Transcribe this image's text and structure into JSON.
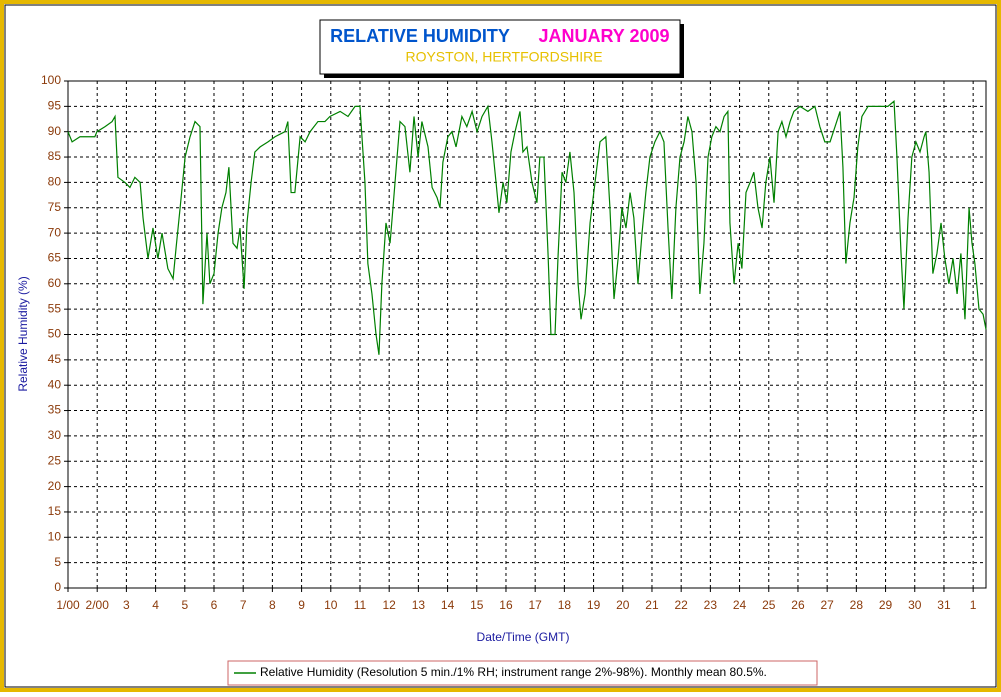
{
  "chart_data": {
    "type": "line",
    "title": "RELATIVE HUMIDITY",
    "title_date": "JANUARY 2009",
    "subtitle": "ROYSTON, HERTFORDSHIRE",
    "ylabel": "Relative Humidity (%)",
    "xlabel": "Date/Time (GMT)",
    "xlim": [
      1,
      32.44
    ],
    "ylim": [
      0,
      100
    ],
    "xticks": [
      {
        "value": 1,
        "label": "1/00"
      },
      {
        "value": 2,
        "label": "2/00"
      },
      3,
      4,
      5,
      6,
      7,
      8,
      9,
      10,
      11,
      12,
      13,
      14,
      15,
      16,
      17,
      18,
      19,
      20,
      21,
      22,
      23,
      24,
      25,
      26,
      27,
      28,
      29,
      30,
      31,
      {
        "value": 32,
        "label": "1"
      }
    ],
    "yticks": [
      0,
      5,
      10,
      15,
      20,
      25,
      30,
      35,
      40,
      45,
      50,
      55,
      60,
      65,
      70,
      75,
      80,
      85,
      90,
      95,
      100
    ],
    "grid": true,
    "x": [
      1.0,
      1.14,
      1.41,
      1.92,
      1.99,
      2.27,
      2.51,
      2.61,
      2.71,
      2.95,
      3.12,
      3.29,
      3.47,
      3.57,
      3.74,
      3.91,
      4.08,
      4.22,
      4.42,
      4.6,
      4.7,
      4.84,
      5.01,
      5.18,
      5.35,
      5.52,
      5.62,
      5.76,
      5.86,
      6.0,
      6.14,
      6.27,
      6.41,
      6.51,
      6.65,
      6.79,
      6.89,
      7.03,
      7.13,
      7.27,
      7.4,
      7.58,
      7.85,
      8.09,
      8.43,
      8.53,
      8.64,
      8.77,
      8.95,
      9.12,
      9.29,
      9.56,
      9.8,
      9.97,
      10.32,
      10.59,
      10.83,
      11.0,
      11.17,
      11.27,
      11.41,
      11.55,
      11.65,
      11.75,
      11.89,
      12.03,
      12.13,
      12.27,
      12.37,
      12.54,
      12.71,
      12.85,
      12.99,
      13.12,
      13.33,
      13.47,
      13.64,
      13.74,
      13.84,
      14.01,
      14.15,
      14.29,
      14.49,
      14.66,
      14.84,
      15.01,
      15.18,
      15.38,
      15.52,
      15.66,
      15.76,
      15.9,
      16.03,
      16.17,
      16.31,
      16.48,
      16.58,
      16.72,
      16.89,
      17.06,
      17.16,
      17.3,
      17.44,
      17.54,
      17.68,
      17.78,
      17.92,
      18.05,
      18.19,
      18.33,
      18.47,
      18.57,
      18.71,
      18.88,
      19.05,
      19.22,
      19.42,
      19.56,
      19.7,
      19.84,
      19.97,
      20.11,
      20.25,
      20.38,
      20.52,
      20.66,
      20.79,
      20.93,
      21.1,
      21.27,
      21.41,
      21.55,
      21.68,
      21.82,
      21.96,
      22.1,
      22.23,
      22.37,
      22.51,
      22.64,
      22.78,
      22.92,
      23.05,
      23.19,
      23.33,
      23.47,
      23.6,
      23.67,
      23.81,
      23.95,
      24.08,
      24.22,
      24.36,
      24.49,
      24.63,
      24.77,
      24.9,
      25.04,
      25.18,
      25.32,
      25.45,
      25.59,
      25.73,
      25.86,
      26.07,
      26.34,
      26.58,
      26.75,
      26.92,
      27.1,
      27.27,
      27.44,
      27.54,
      27.64,
      27.78,
      27.92,
      28.05,
      28.19,
      28.4,
      28.81,
      29.08,
      29.29,
      29.39,
      29.53,
      29.63,
      29.77,
      29.9,
      30.04,
      30.18,
      30.32,
      30.38,
      30.49,
      30.62,
      30.76,
      30.9,
      31.03,
      31.17,
      31.31,
      31.45,
      31.58,
      31.72,
      31.86,
      31.96,
      32.06,
      32.2,
      32.34,
      32.44
    ],
    "series": [
      {
        "name": "Relative Humidity (Resolution 5 min./1% RH; instrument range 2%-98%). Monthly mean 80.5%.",
        "color": "#008000",
        "values": [
          90,
          88,
          89,
          89,
          90,
          91,
          92,
          93,
          81,
          80,
          79,
          81,
          80,
          73,
          65,
          71,
          65,
          70,
          63,
          61,
          67,
          75,
          85,
          89,
          92,
          91,
          56,
          70,
          60,
          62,
          70,
          75,
          78,
          83,
          68,
          67,
          71,
          59,
          72,
          80,
          86,
          87,
          88,
          89,
          90,
          92,
          78,
          78,
          89,
          88,
          90,
          92,
          92,
          93,
          94,
          93,
          95,
          95,
          80,
          64,
          58,
          50,
          46,
          60,
          72,
          68,
          75,
          85,
          92,
          91,
          82,
          93,
          85,
          92,
          87,
          79,
          77,
          75,
          84,
          89,
          90,
          87,
          93,
          91,
          94,
          90,
          93,
          95,
          88,
          80,
          74,
          80,
          76,
          86,
          90,
          94,
          86,
          87,
          80,
          76,
          85,
          85,
          66,
          50,
          50,
          65,
          82,
          80,
          86,
          78,
          60,
          53,
          58,
          72,
          80,
          88,
          89,
          75,
          57,
          65,
          75,
          71,
          78,
          73,
          60,
          70,
          78,
          85,
          88,
          90,
          88,
          71,
          57,
          75,
          85,
          88,
          93,
          90,
          80,
          58,
          68,
          85,
          89,
          91,
          90,
          93,
          94,
          72,
          60,
          68,
          63,
          78,
          80,
          82,
          75,
          71,
          80,
          85,
          76,
          90,
          92,
          89,
          92,
          94,
          95,
          94,
          95,
          91,
          88,
          88,
          91,
          94,
          83,
          64,
          72,
          77,
          87,
          93,
          95,
          95,
          95,
          96,
          85,
          66,
          55,
          73,
          85,
          88,
          86,
          89,
          90,
          82,
          62,
          66,
          72,
          65,
          60,
          65,
          58,
          66,
          53,
          75,
          68,
          64,
          55,
          54,
          51
        ]
      }
    ]
  }
}
